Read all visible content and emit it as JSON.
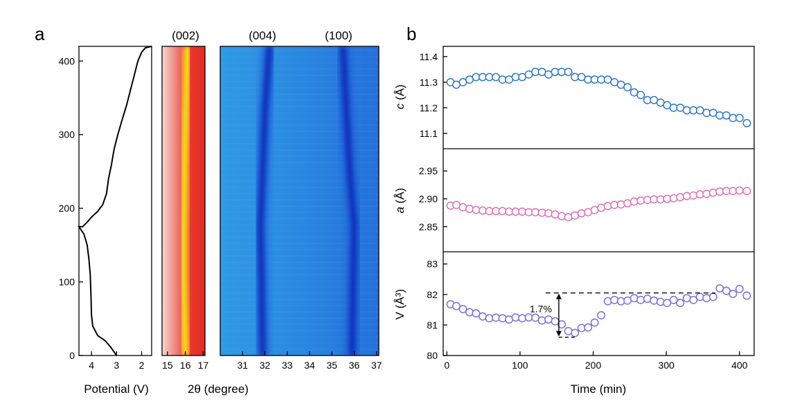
{
  "panel_labels": [
    "a",
    "b"
  ],
  "peak_labels": [
    "(002)",
    "(004)",
    "(100)"
  ],
  "chart_data": [
    {
      "id": "potential",
      "type": "line",
      "xlabel": "Potential (V)",
      "ylabel": "",
      "x_ticks": [
        4,
        3,
        2
      ],
      "y_ticks": [
        0,
        100,
        200,
        300,
        400
      ],
      "xlim": [
        4.5,
        1.6
      ],
      "ylim": [
        0,
        420
      ],
      "x_reversed": true,
      "series": [
        {
          "color": "#000000",
          "points": [
            [
              3.0,
              0
            ],
            [
              3.1,
              5
            ],
            [
              3.25,
              12
            ],
            [
              3.45,
              20
            ],
            [
              3.75,
              27
            ],
            [
              3.95,
              40
            ],
            [
              4.0,
              55
            ],
            [
              4.02,
              80
            ],
            [
              4.05,
              110
            ],
            [
              4.1,
              130
            ],
            [
              4.17,
              150
            ],
            [
              4.3,
              165
            ],
            [
              4.5,
              175
            ],
            [
              4.35,
              175
            ],
            [
              4.15,
              182
            ],
            [
              4.0,
              188
            ],
            [
              3.75,
              196
            ],
            [
              3.55,
              205
            ],
            [
              3.4,
              220
            ],
            [
              3.32,
              240
            ],
            [
              3.2,
              260
            ],
            [
              3.1,
              280
            ],
            [
              2.95,
              300
            ],
            [
              2.78,
              320
            ],
            [
              2.6,
              340
            ],
            [
              2.45,
              360
            ],
            [
              2.3,
              380
            ],
            [
              2.15,
              400
            ],
            [
              2.0,
              412
            ],
            [
              1.85,
              418
            ],
            [
              1.6,
              420
            ]
          ]
        }
      ]
    },
    {
      "id": "xrd-002",
      "type": "heatmap",
      "xlabel": "2θ (degree)",
      "x_ticks": [
        15,
        16,
        17
      ],
      "xlim": [
        14.7,
        17.1
      ],
      "ylim": [
        0,
        420
      ],
      "peak_label": "(002)",
      "peak_center": [
        [
          0,
          16.0
        ],
        [
          100,
          15.9
        ],
        [
          170,
          15.9
        ],
        [
          250,
          15.95
        ],
        [
          330,
          16.02
        ],
        [
          420,
          16.12
        ]
      ]
    },
    {
      "id": "xrd-004-100",
      "type": "heatmap",
      "x_ticks": [
        31,
        32,
        33,
        34,
        35,
        36,
        37
      ],
      "xlim": [
        30.0,
        37.1
      ],
      "ylim": [
        0,
        420
      ],
      "peak_labels": [
        "(004)",
        "(100)"
      ],
      "peak_004": [
        [
          0,
          31.9
        ],
        [
          100,
          31.85
        ],
        [
          175,
          31.8
        ],
        [
          250,
          31.9
        ],
        [
          330,
          32.0
        ],
        [
          420,
          32.2
        ]
      ],
      "peak_100": [
        [
          0,
          35.9
        ],
        [
          100,
          35.95
        ],
        [
          175,
          36.0
        ],
        [
          250,
          35.8
        ],
        [
          330,
          35.65
        ],
        [
          420,
          35.5
        ]
      ]
    },
    {
      "id": "c-lattice",
      "type": "scatter",
      "ylabel_italic": "c",
      "ylabel_unit": " (Å)",
      "y_ticks": [
        "11.4",
        "11.3",
        "11.2",
        "11.1"
      ],
      "ylim": [
        11.04,
        11.44
      ],
      "xlim": [
        -5,
        420
      ],
      "color": "#2e78c8",
      "x": [
        5,
        13,
        22,
        31,
        40,
        49,
        58,
        67,
        76,
        85,
        94,
        103,
        112,
        121,
        130,
        139,
        148,
        157,
        166,
        175,
        184,
        193,
        202,
        211,
        220,
        229,
        238,
        247,
        256,
        265,
        274,
        283,
        292,
        301,
        310,
        319,
        328,
        337,
        346,
        355,
        364,
        373,
        382,
        391,
        400,
        410
      ],
      "y": [
        11.3,
        11.29,
        11.3,
        11.31,
        11.32,
        11.32,
        11.32,
        11.32,
        11.31,
        11.31,
        11.32,
        11.32,
        11.33,
        11.34,
        11.34,
        11.33,
        11.34,
        11.34,
        11.34,
        11.32,
        11.32,
        11.31,
        11.31,
        11.31,
        11.31,
        11.3,
        11.29,
        11.28,
        11.26,
        11.25,
        11.23,
        11.23,
        11.22,
        11.21,
        11.2,
        11.2,
        11.19,
        11.19,
        11.19,
        11.18,
        11.18,
        11.17,
        11.17,
        11.16,
        11.16,
        11.14
      ]
    },
    {
      "id": "a-lattice",
      "type": "scatter",
      "ylabel_italic": "a",
      "ylabel_unit": " (Å)",
      "y_ticks": [
        "2.95",
        "2.90",
        "2.85"
      ],
      "ylim": [
        2.805,
        2.99
      ],
      "xlim": [
        -5,
        420
      ],
      "color": "#e070b4",
      "x": [
        5,
        13,
        22,
        31,
        40,
        49,
        58,
        67,
        76,
        85,
        94,
        103,
        112,
        121,
        130,
        139,
        148,
        157,
        166,
        175,
        184,
        193,
        202,
        211,
        220,
        229,
        238,
        247,
        256,
        265,
        274,
        283,
        292,
        301,
        310,
        319,
        328,
        337,
        346,
        355,
        364,
        373,
        382,
        391,
        400,
        410
      ],
      "y": [
        2.888,
        2.889,
        2.885,
        2.882,
        2.88,
        2.879,
        2.878,
        2.878,
        2.878,
        2.877,
        2.877,
        2.877,
        2.876,
        2.876,
        2.875,
        2.874,
        2.872,
        2.869,
        2.867,
        2.87,
        2.874,
        2.876,
        2.88,
        2.884,
        2.887,
        2.889,
        2.89,
        2.892,
        2.895,
        2.897,
        2.898,
        2.899,
        2.899,
        2.9,
        2.901,
        2.903,
        2.905,
        2.906,
        2.908,
        2.909,
        2.911,
        2.913,
        2.914,
        2.914,
        2.915,
        2.914
      ]
    },
    {
      "id": "v-volume",
      "type": "scatter",
      "ylabel": "V (Å³)",
      "y_ticks": [
        "83",
        "82",
        "81",
        "80"
      ],
      "ylim": [
        80,
        83.4
      ],
      "xlim": [
        -5,
        420
      ],
      "xlabel": "Time (min)",
      "x_ticks": [
        0,
        100,
        200,
        300,
        400
      ],
      "color": "#7a6fe0",
      "x": [
        5,
        13,
        22,
        31,
        40,
        49,
        58,
        67,
        76,
        85,
        94,
        103,
        112,
        121,
        130,
        139,
        148,
        157,
        166,
        175,
        184,
        193,
        202,
        211,
        220,
        229,
        238,
        247,
        256,
        265,
        274,
        283,
        292,
        301,
        310,
        319,
        328,
        337,
        346,
        355,
        364,
        373,
        382,
        391,
        400,
        410
      ],
      "y": [
        81.68,
        81.62,
        81.52,
        81.42,
        81.38,
        81.28,
        81.22,
        81.24,
        81.22,
        81.18,
        81.25,
        81.22,
        81.25,
        81.24,
        81.15,
        81.18,
        81.12,
        81.02,
        80.8,
        80.74,
        80.9,
        80.92,
        81.08,
        81.32,
        81.78,
        81.82,
        81.78,
        81.8,
        81.88,
        81.82,
        81.86,
        81.8,
        81.76,
        81.72,
        81.82,
        81.72,
        81.88,
        81.82,
        81.92,
        81.88,
        81.92,
        82.2,
        82.12,
        82.02,
        82.18,
        81.96
      ],
      "annotation": {
        "text": "1.7%",
        "x_start": 165,
        "x_end": 367,
        "y_low": 80.6,
        "y_high": 82.05
      }
    }
  ]
}
